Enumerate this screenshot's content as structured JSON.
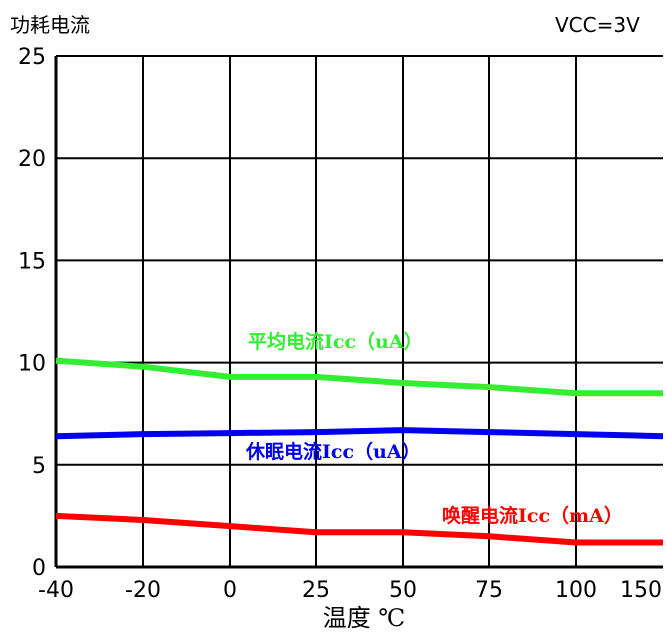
{
  "chart_data": {
    "type": "line",
    "title": "功耗电流",
    "annotation": "VCC=3V",
    "xlabel": "温度 ℃",
    "ylabel": "",
    "xlim": [
      -40,
      160
    ],
    "ylim": [
      0,
      25
    ],
    "grid": true,
    "x_ticks": [
      -40,
      -20,
      0,
      25,
      50,
      75,
      100,
      150
    ],
    "y_ticks": [
      0,
      5,
      10,
      15,
      20,
      25
    ],
    "series": [
      {
        "name": "平均电流Icc（uA）",
        "color": "#33ee33",
        "x": [
          -40,
          -20,
          0,
          25,
          50,
          75,
          100,
          160
        ],
        "y": [
          10.1,
          9.8,
          9.3,
          9.3,
          9.0,
          8.8,
          8.5,
          8.5
        ]
      },
      {
        "name": "休眠电流Icc（uA）",
        "color": "#0000ee",
        "x": [
          -40,
          -20,
          0,
          25,
          50,
          75,
          100,
          160
        ],
        "y": [
          6.4,
          6.5,
          6.55,
          6.6,
          6.7,
          6.6,
          6.5,
          6.4
        ]
      },
      {
        "name": "唤醒电流Icc（mA）",
        "color": "#ff0000",
        "x": [
          -40,
          -20,
          0,
          25,
          50,
          75,
          100,
          160
        ],
        "y": [
          2.5,
          2.3,
          2.0,
          1.7,
          1.7,
          1.5,
          1.2,
          1.2
        ]
      }
    ]
  }
}
